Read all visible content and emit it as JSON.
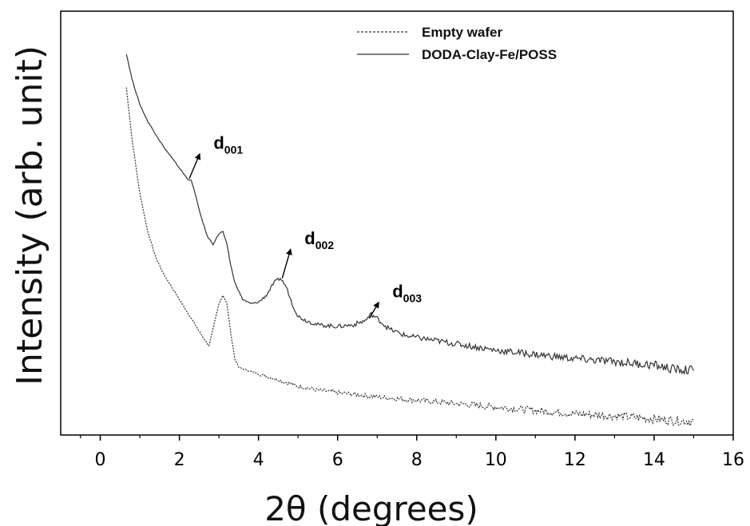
{
  "chart_data": {
    "type": "line",
    "xlabel": "2θ (degrees)",
    "ylabel": "Intensity (arb. unit)",
    "xlim": [
      -1,
      16
    ],
    "ylim": [
      0,
      100
    ],
    "x_ticks": [
      "0",
      "2",
      "4",
      "6",
      "8",
      "10",
      "12",
      "14",
      "16"
    ],
    "x_tick_values": [
      0,
      2,
      4,
      6,
      8,
      10,
      12,
      14,
      16
    ],
    "y_tick_labels": false,
    "grid": false,
    "legend_position": "top-right",
    "series": [
      {
        "name": "Empty wafer",
        "style": "dashed",
        "color": "#333333",
        "x": [
          0.66,
          0.8,
          1.0,
          1.2,
          1.4,
          1.6,
          1.8,
          2.0,
          2.2,
          2.4,
          2.6,
          2.75,
          2.9,
          3.0,
          3.1,
          3.2,
          3.3,
          3.4,
          3.5,
          3.7,
          4.0,
          4.5,
          5.0,
          5.5,
          6.0,
          7.0,
          8.0,
          9.0,
          10.0,
          11.0,
          12.0,
          13.0,
          14.0,
          14.5,
          15.0
        ],
        "y": [
          82,
          70,
          57,
          48,
          42,
          38,
          35,
          32,
          29,
          26,
          23,
          21,
          27,
          31,
          33,
          31,
          24,
          18,
          16,
          15.3,
          14.4,
          13.0,
          11.5,
          10.6,
          10.0,
          9.0,
          8.2,
          7.4,
          6.6,
          5.8,
          5.0,
          4.5,
          3.8,
          3.4,
          3.2
        ]
      },
      {
        "name": "DODA-Clay-Fe/POSS",
        "style": "solid",
        "color": "#333333",
        "x": [
          0.66,
          0.8,
          1.0,
          1.2,
          1.4,
          1.6,
          1.8,
          2.0,
          2.2,
          2.3,
          2.4,
          2.5,
          2.6,
          2.7,
          2.85,
          3.0,
          3.1,
          3.2,
          3.3,
          3.4,
          3.6,
          3.8,
          4.0,
          4.2,
          4.4,
          4.55,
          4.7,
          4.85,
          5.0,
          5.2,
          5.5,
          6.0,
          6.4,
          6.7,
          6.85,
          7.0,
          7.3,
          7.7,
          8.0,
          9.0,
          10.0,
          11.0,
          12.0,
          13.0,
          14.0,
          14.5,
          15.0
        ],
        "y": [
          90,
          84,
          78,
          74,
          71,
          68,
          65.5,
          63,
          60.5,
          60,
          57,
          53,
          50,
          47,
          45,
          47.5,
          48,
          45,
          40,
          36,
          32,
          31,
          31.3,
          33,
          36,
          37,
          35,
          31,
          28,
          27,
          26,
          25.6,
          26,
          27,
          28.5,
          27.5,
          25,
          23.5,
          23,
          21.5,
          20,
          19,
          18,
          17.3,
          16.5,
          15.5,
          15.2
        ]
      }
    ],
    "annotations": [
      {
        "base": "d",
        "sub": "001",
        "x": 2.25,
        "y": 60.5,
        "arrow_dx": 0.25,
        "arrow_dy": 5.5
      },
      {
        "base": "d",
        "sub": "002",
        "x": 4.6,
        "y": 37,
        "arrow_dx": 0.2,
        "arrow_dy": 6.5
      },
      {
        "base": "d",
        "sub": "003",
        "x": 6.8,
        "y": 27.5,
        "arrow_dx": 0.22,
        "arrow_dy": 3.5
      }
    ]
  }
}
